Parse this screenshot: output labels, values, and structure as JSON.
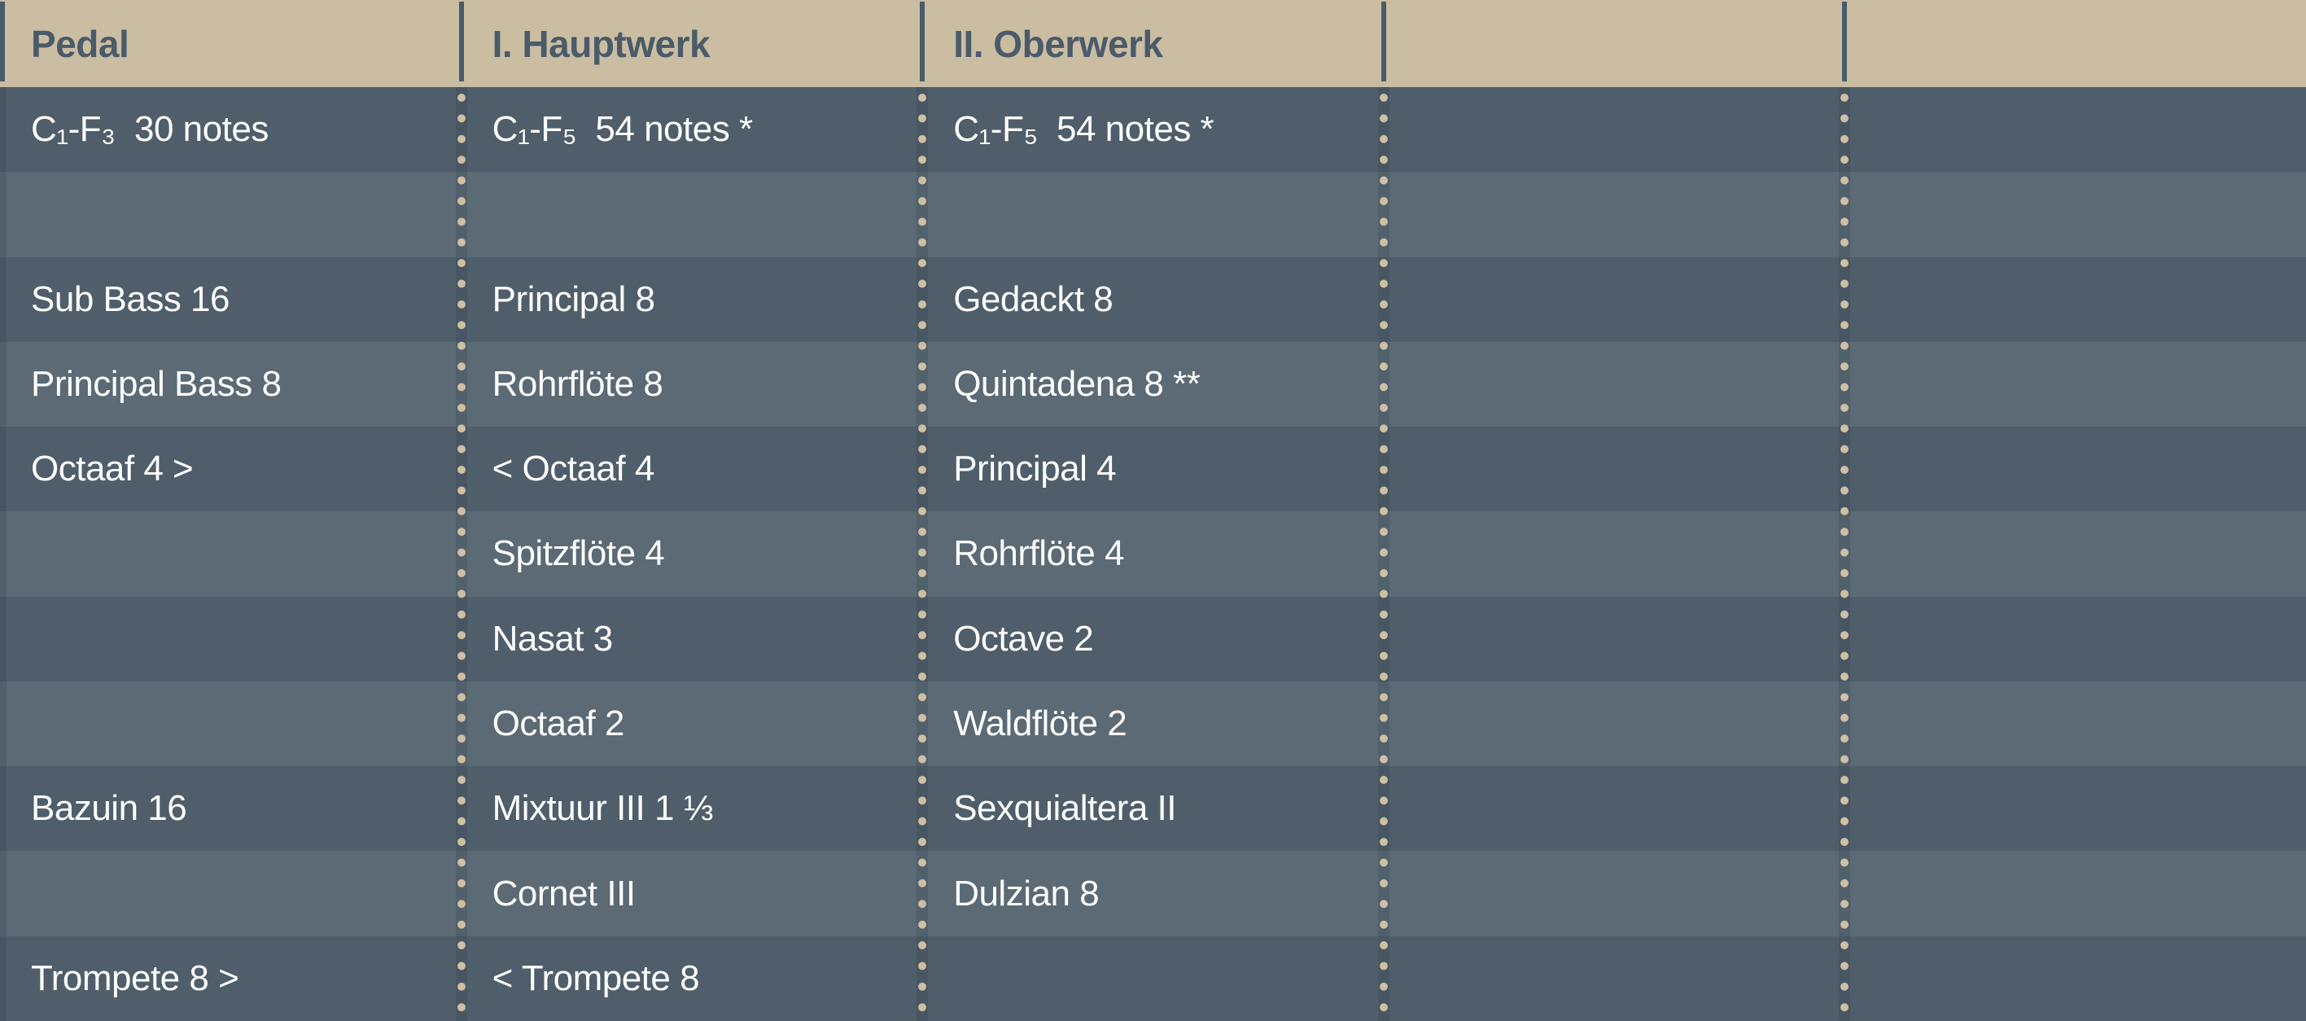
{
  "colors": {
    "header_bg": "#cbbda2",
    "header_text": "#4a5b6a",
    "row_dark": "#4f5e6a",
    "row_light": "#5b6a75",
    "dot": "#cfc0a3",
    "body_text": "#fdfdfd"
  },
  "table": {
    "columns": [
      {
        "header": "Pedal"
      },
      {
        "header": "I. Hauptwerk"
      },
      {
        "header": "II. Oberwerk"
      },
      {
        "header": ""
      },
      {
        "header": ""
      }
    ],
    "rows": [
      {
        "cells": [
          "C₁-F₃  30 notes",
          "C₁-F₅  54 notes *",
          "C₁-F₅  54 notes *",
          "",
          ""
        ]
      },
      {
        "cells": [
          "",
          "",
          "",
          "",
          ""
        ]
      },
      {
        "cells": [
          "Sub Bass 16",
          "Principal 8",
          "Gedackt 8",
          "",
          ""
        ]
      },
      {
        "cells": [
          "Principal Bass 8",
          "Rohrflöte 8",
          "Quintadena 8 **",
          "",
          ""
        ]
      },
      {
        "cells": [
          "Octaaf 4 >",
          "< Octaaf 4",
          "Principal 4",
          "",
          ""
        ]
      },
      {
        "cells": [
          "",
          "Spitzflöte 4",
          "Rohrflöte 4",
          "",
          ""
        ]
      },
      {
        "cells": [
          "",
          "Nasat 3",
          "Octave 2",
          "",
          ""
        ]
      },
      {
        "cells": [
          "",
          "Octaaf 2",
          "Waldflöte 2",
          "",
          ""
        ]
      },
      {
        "cells": [
          "Bazuin 16",
          "Mixtuur III 1 ⅓",
          "Sexquialtera II",
          "",
          ""
        ]
      },
      {
        "cells": [
          "",
          "Cornet III",
          "Dulzian 8",
          "",
          ""
        ]
      },
      {
        "cells": [
          "Trompete 8 >",
          "< Trompete 8",
          "",
          "",
          ""
        ]
      }
    ]
  }
}
